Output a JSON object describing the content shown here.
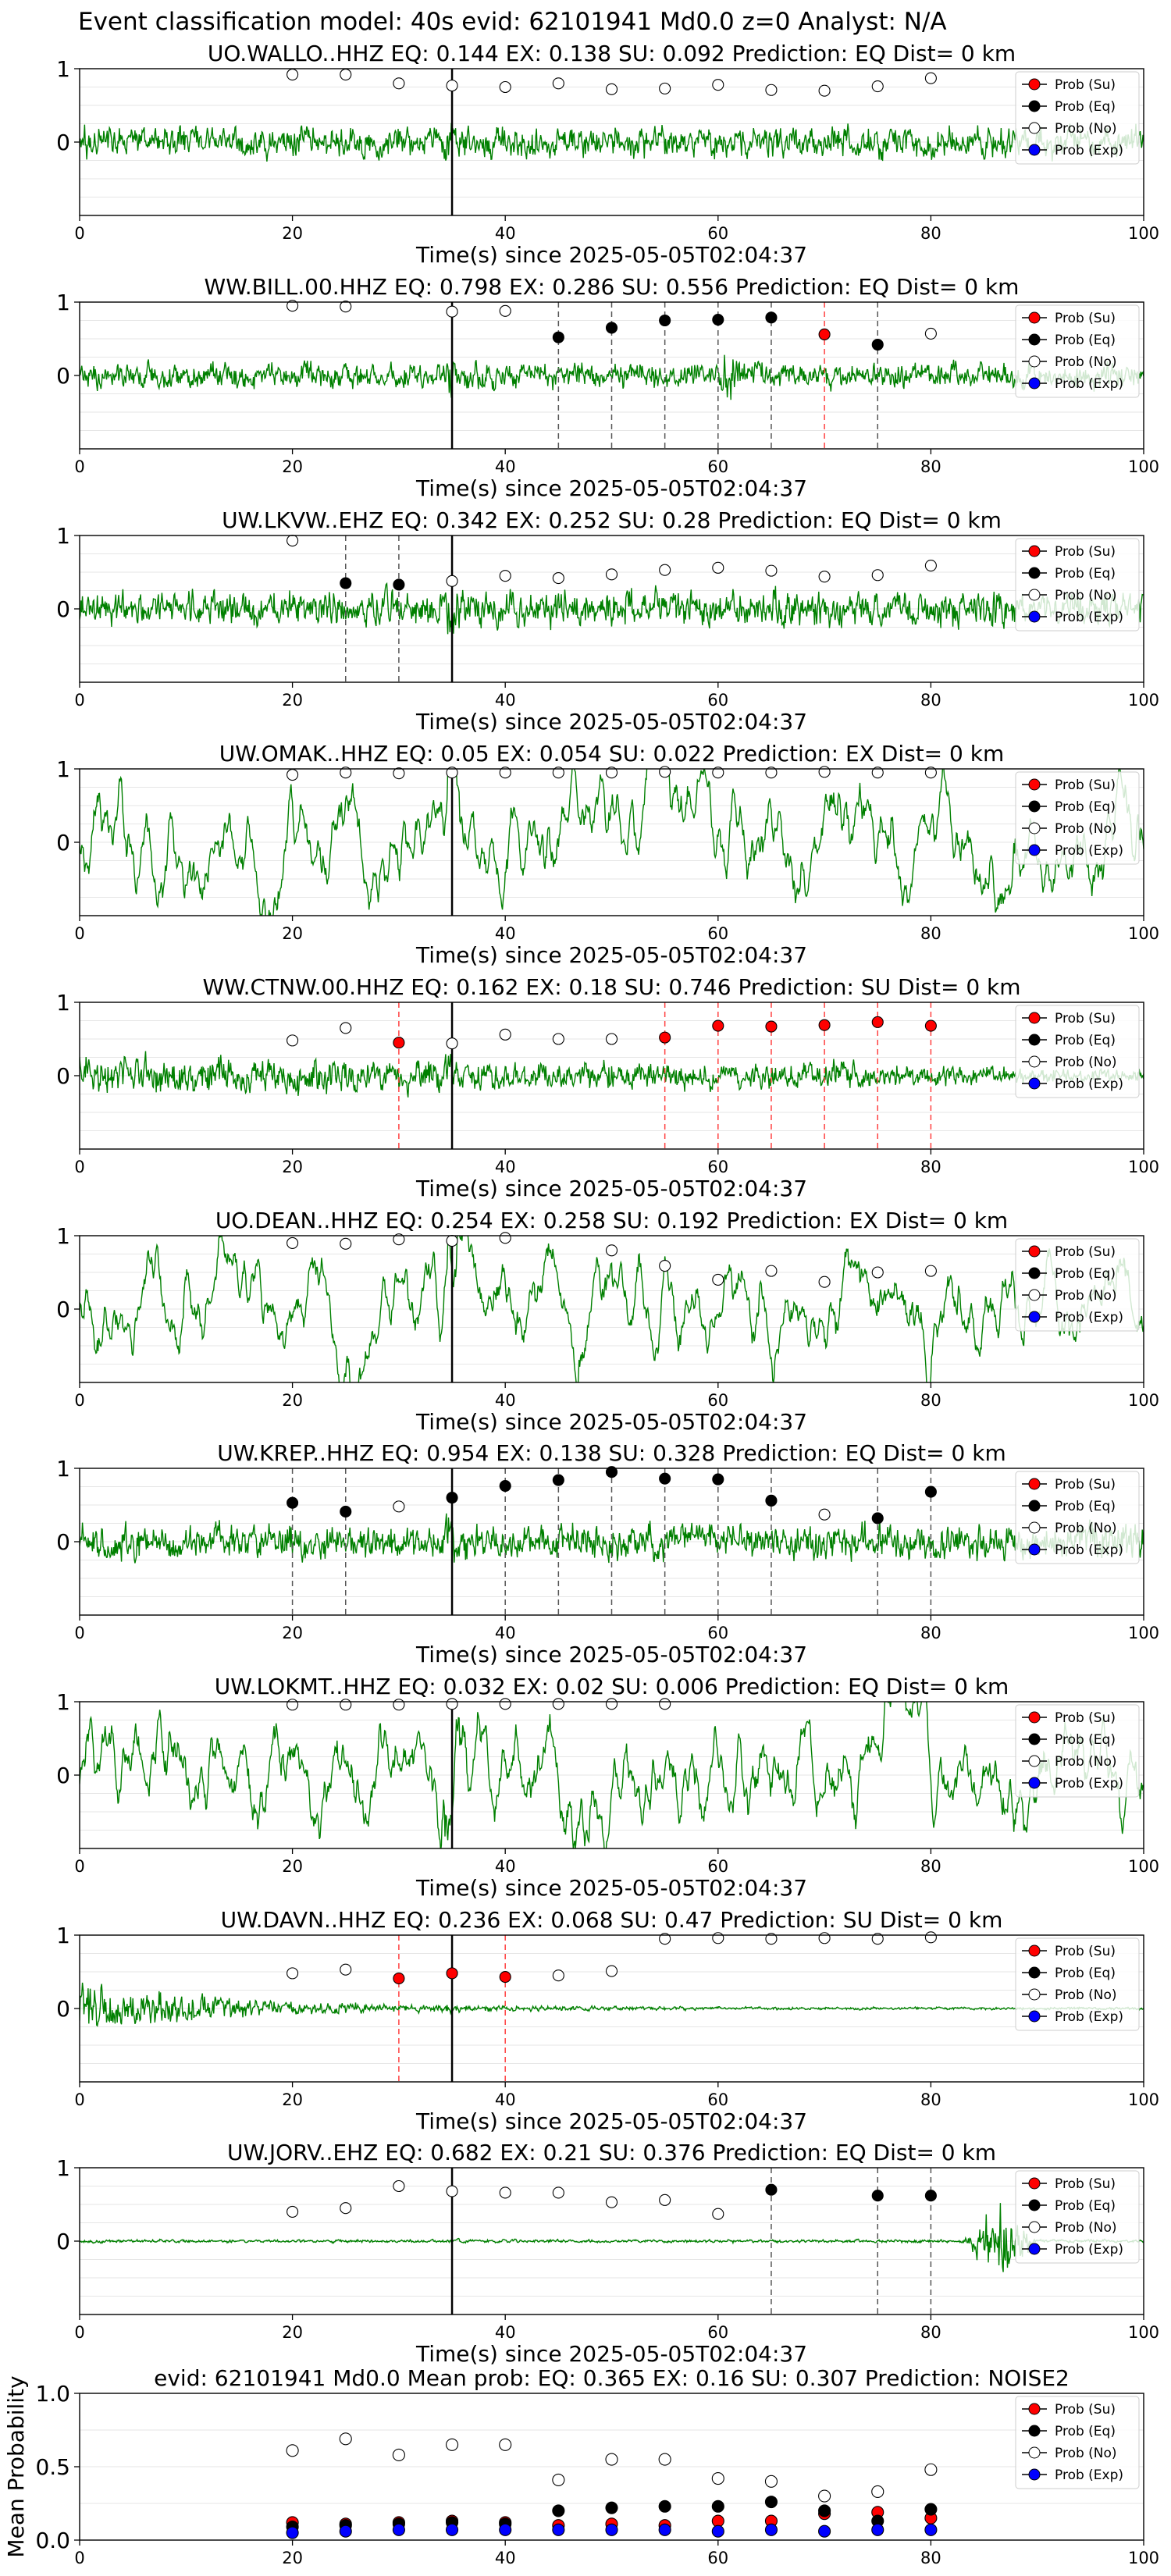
{
  "figure_title": "Event classification model: 40s evid: 62101941 Md0.0 z=0 Analyst: N/A",
  "legend": {
    "entries": [
      {
        "label": "Prob (Su)",
        "color": "#ff0000",
        "key": "su"
      },
      {
        "label": "Prob (Eq)",
        "color": "#000000",
        "key": "eq"
      },
      {
        "label": "Prob (No)",
        "color": "#ffffff",
        "key": "no"
      },
      {
        "label": "Prob (Exp)",
        "color": "#0000ff",
        "key": "exp"
      }
    ]
  },
  "colors": {
    "waveform": "#008000",
    "eq_line": "#555555",
    "su_line": "#ff4040",
    "event_line": "#000000"
  },
  "chart_data": [
    {
      "type": "line",
      "station": "UO.WALLO..HHZ",
      "title": "UO.WALLO..HHZ   EQ: 0.144  EX: 0.138  SU: 0.092   Prediction: EQ    Dist= 0 km",
      "xlabel": "Time(s) since 2025-05-05T02:04:37",
      "xlim": [
        0,
        100
      ],
      "ylim": [
        -1,
        1
      ],
      "xticks": [
        0,
        20,
        40,
        60,
        80,
        100
      ],
      "yticks": [
        1,
        0
      ],
      "event_time": 35,
      "noise": {
        "amp": 0.3,
        "type": "broadband",
        "env_start": 1,
        "env_end": 1
      },
      "points": [
        {
          "x": 20,
          "y": 0.92,
          "cls": "no"
        },
        {
          "x": 25,
          "y": 0.92,
          "cls": "no"
        },
        {
          "x": 30,
          "y": 0.8,
          "cls": "no"
        },
        {
          "x": 35,
          "y": 0.77,
          "cls": "no"
        },
        {
          "x": 40,
          "y": 0.75,
          "cls": "no"
        },
        {
          "x": 45,
          "y": 0.8,
          "cls": "no"
        },
        {
          "x": 50,
          "y": 0.72,
          "cls": "no"
        },
        {
          "x": 55,
          "y": 0.73,
          "cls": "no"
        },
        {
          "x": 60,
          "y": 0.78,
          "cls": "no"
        },
        {
          "x": 65,
          "y": 0.71,
          "cls": "no"
        },
        {
          "x": 70,
          "y": 0.7,
          "cls": "no"
        },
        {
          "x": 75,
          "y": 0.76,
          "cls": "no"
        },
        {
          "x": 80,
          "y": 0.87,
          "cls": "no"
        }
      ]
    },
    {
      "type": "line",
      "station": "WW.BILL.00.HHZ",
      "title": "WW.BILL.00.HHZ   EQ: 0.798  EX: 0.286  SU: 0.556   Prediction: EQ    Dist= 0 km",
      "xlabel": "Time(s) since 2025-05-05T02:04:37",
      "xlim": [
        0,
        100
      ],
      "ylim": [
        -1,
        1
      ],
      "xticks": [
        0,
        20,
        40,
        60,
        80,
        100
      ],
      "yticks": [
        1,
        0
      ],
      "event_time": 35,
      "noise": {
        "amp": 0.25,
        "type": "broadband",
        "env_start": 1,
        "env_end": 1,
        "burst": [
          60,
          62,
          3
        ]
      },
      "points": [
        {
          "x": 20,
          "y": 0.95,
          "cls": "no"
        },
        {
          "x": 25,
          "y": 0.94,
          "cls": "no"
        },
        {
          "x": 35,
          "y": 0.87,
          "cls": "no"
        },
        {
          "x": 40,
          "y": 0.88,
          "cls": "no"
        },
        {
          "x": 45,
          "y": 0.52,
          "cls": "eq"
        },
        {
          "x": 50,
          "y": 0.65,
          "cls": "eq"
        },
        {
          "x": 55,
          "y": 0.75,
          "cls": "eq"
        },
        {
          "x": 60,
          "y": 0.76,
          "cls": "eq"
        },
        {
          "x": 65,
          "y": 0.79,
          "cls": "eq"
        },
        {
          "x": 70,
          "y": 0.56,
          "cls": "su"
        },
        {
          "x": 75,
          "y": 0.42,
          "cls": "eq"
        },
        {
          "x": 80,
          "y": 0.57,
          "cls": "no"
        }
      ],
      "eq_lines": [
        45,
        50,
        55,
        60,
        65,
        75
      ],
      "su_lines": [
        70
      ]
    },
    {
      "type": "line",
      "station": "UW.LKVW..EHZ",
      "title": "UW.LKVW..EHZ   EQ: 0.342  EX: 0.252  SU: 0.28   Prediction: EQ    Dist= 0 km",
      "xlabel": "Time(s) since 2025-05-05T02:04:37",
      "xlim": [
        0,
        100
      ],
      "ylim": [
        -1,
        1
      ],
      "xticks": [
        0,
        20,
        40,
        60,
        80,
        100
      ],
      "yticks": [
        1,
        0
      ],
      "event_time": 35,
      "noise": {
        "amp": 0.35,
        "type": "broadband",
        "env_start": 1,
        "env_end": 1
      },
      "points": [
        {
          "x": 20,
          "y": 0.93,
          "cls": "no"
        },
        {
          "x": 25,
          "y": 0.35,
          "cls": "eq"
        },
        {
          "x": 30,
          "y": 0.33,
          "cls": "eq"
        },
        {
          "x": 35,
          "y": 0.38,
          "cls": "no"
        },
        {
          "x": 40,
          "y": 0.45,
          "cls": "no"
        },
        {
          "x": 45,
          "y": 0.42,
          "cls": "no"
        },
        {
          "x": 50,
          "y": 0.47,
          "cls": "no"
        },
        {
          "x": 55,
          "y": 0.53,
          "cls": "no"
        },
        {
          "x": 60,
          "y": 0.56,
          "cls": "no"
        },
        {
          "x": 65,
          "y": 0.52,
          "cls": "no"
        },
        {
          "x": 70,
          "y": 0.44,
          "cls": "no"
        },
        {
          "x": 75,
          "y": 0.46,
          "cls": "no"
        },
        {
          "x": 80,
          "y": 0.59,
          "cls": "no"
        }
      ],
      "eq_lines": [
        25,
        30
      ],
      "su_lines": []
    },
    {
      "type": "line",
      "station": "UW.OMAK..HHZ",
      "title": "UW.OMAK..HHZ   EQ: 0.05  EX: 0.054  SU: 0.022   Prediction: EX    Dist= 0 km",
      "xlabel": "Time(s) since 2025-05-05T02:04:37",
      "xlim": [
        0,
        100
      ],
      "ylim": [
        -1,
        1
      ],
      "xticks": [
        0,
        20,
        40,
        60,
        80,
        100
      ],
      "yticks": [
        1,
        0
      ],
      "event_time": 35,
      "noise": {
        "amp": 0.6,
        "type": "lowfreq",
        "env_start": 1,
        "env_end": 1
      },
      "points": [
        {
          "x": 20,
          "y": 0.92,
          "cls": "no"
        },
        {
          "x": 25,
          "y": 0.95,
          "cls": "no"
        },
        {
          "x": 30,
          "y": 0.94,
          "cls": "no"
        },
        {
          "x": 35,
          "y": 0.95,
          "cls": "no"
        },
        {
          "x": 40,
          "y": 0.95,
          "cls": "no"
        },
        {
          "x": 45,
          "y": 0.95,
          "cls": "no"
        },
        {
          "x": 50,
          "y": 0.95,
          "cls": "no"
        },
        {
          "x": 55,
          "y": 0.96,
          "cls": "no"
        },
        {
          "x": 60,
          "y": 0.95,
          "cls": "no"
        },
        {
          "x": 65,
          "y": 0.95,
          "cls": "no"
        },
        {
          "x": 70,
          "y": 0.96,
          "cls": "no"
        },
        {
          "x": 75,
          "y": 0.95,
          "cls": "no"
        },
        {
          "x": 80,
          "y": 0.95,
          "cls": "no"
        }
      ]
    },
    {
      "type": "line",
      "station": "WW.CTNW.00.HHZ",
      "title": "WW.CTNW.00.HHZ   EQ: 0.162  EX: 0.18  SU: 0.746   Prediction: SU    Dist= 0 km",
      "xlabel": "Time(s) since 2025-05-05T02:04:37",
      "xlim": [
        0,
        100
      ],
      "ylim": [
        -1,
        1
      ],
      "xticks": [
        0,
        20,
        40,
        60,
        80,
        100
      ],
      "yticks": [
        1,
        0
      ],
      "event_time": 35,
      "noise": {
        "amp": 0.4,
        "type": "broadband",
        "env_start": 1.0,
        "env_end": 0.35,
        "burst": [
          65,
          80,
          1.4
        ]
      },
      "points": [
        {
          "x": 20,
          "y": 0.48,
          "cls": "no"
        },
        {
          "x": 25,
          "y": 0.65,
          "cls": "no"
        },
        {
          "x": 30,
          "y": 0.45,
          "cls": "su"
        },
        {
          "x": 35,
          "y": 0.44,
          "cls": "no"
        },
        {
          "x": 40,
          "y": 0.56,
          "cls": "no"
        },
        {
          "x": 45,
          "y": 0.5,
          "cls": "no"
        },
        {
          "x": 50,
          "y": 0.5,
          "cls": "no"
        },
        {
          "x": 55,
          "y": 0.52,
          "cls": "su"
        },
        {
          "x": 60,
          "y": 0.68,
          "cls": "su"
        },
        {
          "x": 65,
          "y": 0.67,
          "cls": "su"
        },
        {
          "x": 70,
          "y": 0.69,
          "cls": "su"
        },
        {
          "x": 75,
          "y": 0.73,
          "cls": "su"
        },
        {
          "x": 80,
          "y": 0.68,
          "cls": "su"
        }
      ],
      "eq_lines": [],
      "su_lines": [
        30,
        55,
        60,
        65,
        70,
        75,
        80
      ]
    },
    {
      "type": "line",
      "station": "UO.DEAN..HHZ",
      "title": "UO.DEAN..HHZ   EQ: 0.254  EX: 0.258  SU: 0.192   Prediction: EX    Dist= 0 km",
      "xlabel": "Time(s) since 2025-05-05T02:04:37",
      "xlim": [
        0,
        100
      ],
      "ylim": [
        -1,
        1
      ],
      "xticks": [
        0,
        20,
        40,
        60,
        80,
        100
      ],
      "yticks": [
        1,
        0
      ],
      "event_time": 35,
      "noise": {
        "amp": 0.55,
        "type": "lowfreq",
        "env_start": 1,
        "env_end": 1
      },
      "points": [
        {
          "x": 20,
          "y": 0.9,
          "cls": "no"
        },
        {
          "x": 25,
          "y": 0.89,
          "cls": "no"
        },
        {
          "x": 30,
          "y": 0.95,
          "cls": "no"
        },
        {
          "x": 35,
          "y": 0.93,
          "cls": "no"
        },
        {
          "x": 40,
          "y": 0.97,
          "cls": "no"
        },
        {
          "x": 50,
          "y": 0.8,
          "cls": "no"
        },
        {
          "x": 55,
          "y": 0.59,
          "cls": "no"
        },
        {
          "x": 60,
          "y": 0.4,
          "cls": "no"
        },
        {
          "x": 65,
          "y": 0.52,
          "cls": "no"
        },
        {
          "x": 70,
          "y": 0.37,
          "cls": "no"
        },
        {
          "x": 75,
          "y": 0.5,
          "cls": "no"
        },
        {
          "x": 80,
          "y": 0.52,
          "cls": "no"
        }
      ]
    },
    {
      "type": "line",
      "station": "UW.KREP..HHZ",
      "title": "UW.KREP..HHZ   EQ: 0.954  EX: 0.138  SU: 0.328   Prediction: EQ    Dist= 0 km",
      "xlabel": "Time(s) since 2025-05-05T02:04:37",
      "xlim": [
        0,
        100
      ],
      "ylim": [
        -1,
        1
      ],
      "xticks": [
        0,
        20,
        40,
        60,
        80,
        100
      ],
      "yticks": [
        1,
        0
      ],
      "event_time": 35,
      "noise": {
        "amp": 0.35,
        "type": "broadband",
        "env_start": 1,
        "env_end": 1
      },
      "points": [
        {
          "x": 20,
          "y": 0.53,
          "cls": "eq"
        },
        {
          "x": 25,
          "y": 0.41,
          "cls": "eq"
        },
        {
          "x": 30,
          "y": 0.48,
          "cls": "no"
        },
        {
          "x": 35,
          "y": 0.6,
          "cls": "eq"
        },
        {
          "x": 40,
          "y": 0.76,
          "cls": "eq"
        },
        {
          "x": 45,
          "y": 0.84,
          "cls": "eq"
        },
        {
          "x": 50,
          "y": 0.95,
          "cls": "eq"
        },
        {
          "x": 55,
          "y": 0.86,
          "cls": "eq"
        },
        {
          "x": 60,
          "y": 0.85,
          "cls": "eq"
        },
        {
          "x": 65,
          "y": 0.56,
          "cls": "eq"
        },
        {
          "x": 70,
          "y": 0.37,
          "cls": "no"
        },
        {
          "x": 75,
          "y": 0.32,
          "cls": "eq"
        },
        {
          "x": 80,
          "y": 0.68,
          "cls": "eq"
        }
      ],
      "eq_lines": [
        20,
        25,
        35,
        40,
        45,
        50,
        55,
        60,
        65,
        75,
        80
      ],
      "su_lines": []
    },
    {
      "type": "line",
      "station": "UW.LOKMT..HHZ",
      "title": "UW.LOKMT..HHZ   EQ: 0.032  EX: 0.02  SU: 0.006   Prediction: EQ    Dist= 0 km",
      "xlabel": "Time(s) since 2025-05-05T02:04:37",
      "xlim": [
        0,
        100
      ],
      "ylim": [
        -1,
        1
      ],
      "xticks": [
        0,
        20,
        40,
        60,
        80,
        100
      ],
      "yticks": [
        1,
        0
      ],
      "event_time": 35,
      "noise": {
        "amp": 0.65,
        "type": "lowfreq",
        "env_start": 1,
        "env_end": 1
      },
      "points": [
        {
          "x": 20,
          "y": 0.96,
          "cls": "no"
        },
        {
          "x": 25,
          "y": 0.96,
          "cls": "no"
        },
        {
          "x": 30,
          "y": 0.96,
          "cls": "no"
        },
        {
          "x": 35,
          "y": 0.97,
          "cls": "no"
        },
        {
          "x": 40,
          "y": 0.97,
          "cls": "no"
        },
        {
          "x": 45,
          "y": 0.97,
          "cls": "no"
        },
        {
          "x": 50,
          "y": 0.97,
          "cls": "no"
        },
        {
          "x": 55,
          "y": 0.97,
          "cls": "no"
        }
      ]
    },
    {
      "type": "line",
      "station": "UW.DAVN..HHZ",
      "title": "UW.DAVN..HHZ   EQ: 0.236  EX: 0.068  SU: 0.47   Prediction: SU    Dist= 0 km",
      "xlabel": "Time(s) since 2025-05-05T02:04:37",
      "xlim": [
        0,
        100
      ],
      "ylim": [
        -1,
        1
      ],
      "xticks": [
        0,
        20,
        40,
        60,
        80,
        100
      ],
      "yticks": [
        1,
        0
      ],
      "event_time": 35,
      "noise": {
        "amp": 0.5,
        "type": "broadband",
        "env_start": 1.0,
        "env_end": 0.05,
        "decay": 0.07
      },
      "points": [
        {
          "x": 20,
          "y": 0.48,
          "cls": "no"
        },
        {
          "x": 25,
          "y": 0.53,
          "cls": "no"
        },
        {
          "x": 30,
          "y": 0.41,
          "cls": "su"
        },
        {
          "x": 35,
          "y": 0.48,
          "cls": "su"
        },
        {
          "x": 40,
          "y": 0.43,
          "cls": "su"
        },
        {
          "x": 45,
          "y": 0.45,
          "cls": "no"
        },
        {
          "x": 50,
          "y": 0.51,
          "cls": "no"
        },
        {
          "x": 55,
          "y": 0.95,
          "cls": "no"
        },
        {
          "x": 60,
          "y": 0.96,
          "cls": "no"
        },
        {
          "x": 65,
          "y": 0.95,
          "cls": "no"
        },
        {
          "x": 70,
          "y": 0.96,
          "cls": "no"
        },
        {
          "x": 75,
          "y": 0.95,
          "cls": "no"
        },
        {
          "x": 80,
          "y": 0.97,
          "cls": "no"
        }
      ],
      "eq_lines": [],
      "su_lines": [
        30,
        40
      ]
    },
    {
      "type": "line",
      "station": "UW.JORV..EHZ",
      "title": "UW.JORV..EHZ   EQ: 0.682  EX: 0.21  SU: 0.376   Prediction: EQ    Dist= 0 km",
      "xlabel": "Time(s) since 2025-05-05T02:04:37",
      "xlim": [
        0,
        100
      ],
      "ylim": [
        -1,
        1
      ],
      "xticks": [
        0,
        20,
        40,
        60,
        80,
        100
      ],
      "yticks": [
        1,
        0
      ],
      "event_time": 35,
      "noise": {
        "amp": 0.03,
        "type": "broadband",
        "env_start": 1,
        "env_end": 1,
        "burst": [
          83,
          90,
          25
        ]
      },
      "points": [
        {
          "x": 20,
          "y": 0.4,
          "cls": "no"
        },
        {
          "x": 25,
          "y": 0.45,
          "cls": "no"
        },
        {
          "x": 30,
          "y": 0.75,
          "cls": "no"
        },
        {
          "x": 35,
          "y": 0.68,
          "cls": "no"
        },
        {
          "x": 40,
          "y": 0.66,
          "cls": "no"
        },
        {
          "x": 45,
          "y": 0.66,
          "cls": "no"
        },
        {
          "x": 50,
          "y": 0.53,
          "cls": "no"
        },
        {
          "x": 55,
          "y": 0.56,
          "cls": "no"
        },
        {
          "x": 60,
          "y": 0.37,
          "cls": "no"
        },
        {
          "x": 65,
          "y": 0.7,
          "cls": "eq"
        },
        {
          "x": 75,
          "y": 0.62,
          "cls": "eq"
        },
        {
          "x": 80,
          "y": 0.62,
          "cls": "eq"
        }
      ],
      "eq_lines": [
        65,
        75,
        80
      ],
      "su_lines": []
    },
    {
      "type": "scatter",
      "station": "mean",
      "title": "evid: 62101941  Md0.0   Mean prob:   EQ: 0.365  EX: 0.16  SU: 0.307   Prediction: NOISE2",
      "ylabel": "Mean Probability",
      "xlim": [
        0,
        100
      ],
      "ylim": [
        0,
        1
      ],
      "xticks": [
        0,
        20,
        40,
        60,
        80,
        100
      ],
      "yticks": [
        1.0,
        0.5,
        0.0
      ],
      "x": [
        20,
        25,
        30,
        35,
        40,
        45,
        50,
        55,
        60,
        65,
        70,
        75,
        80
      ],
      "series": [
        {
          "cls": "no",
          "values": [
            0.61,
            0.69,
            0.58,
            0.65,
            0.65,
            0.41,
            0.55,
            0.55,
            0.42,
            0.4,
            0.3,
            0.33,
            0.48
          ]
        },
        {
          "cls": "su",
          "values": [
            0.12,
            0.11,
            0.12,
            0.13,
            0.12,
            0.1,
            0.11,
            0.1,
            0.13,
            0.13,
            0.18,
            0.19,
            0.15
          ]
        },
        {
          "cls": "eq",
          "values": [
            0.09,
            0.1,
            0.11,
            0.12,
            0.11,
            0.2,
            0.22,
            0.23,
            0.23,
            0.26,
            0.2,
            0.13,
            0.21
          ]
        },
        {
          "cls": "exp",
          "values": [
            0.05,
            0.06,
            0.07,
            0.07,
            0.07,
            0.07,
            0.07,
            0.07,
            0.06,
            0.07,
            0.06,
            0.07,
            0.07
          ]
        }
      ]
    }
  ]
}
